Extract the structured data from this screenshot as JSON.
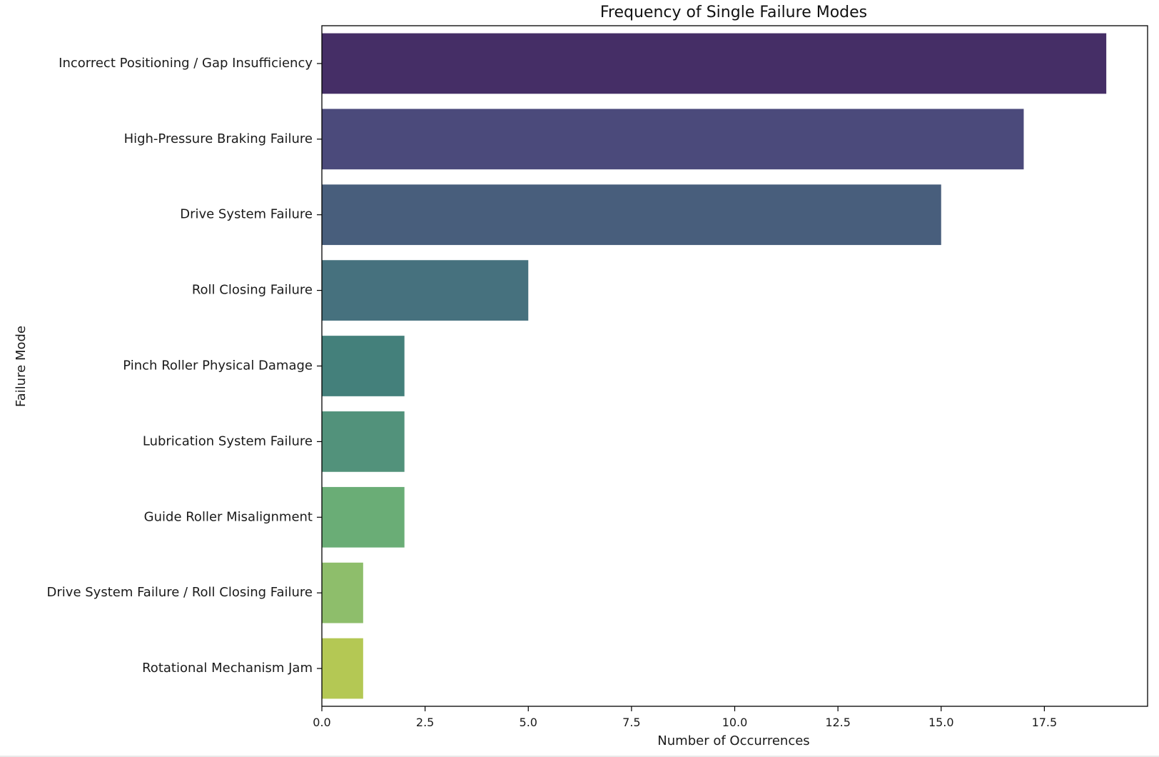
{
  "chart_data": {
    "type": "bar",
    "orientation": "horizontal",
    "title": "Frequency of Single Failure Modes",
    "xlabel": "Number of Occurrences",
    "ylabel": "Failure Mode",
    "categories": [
      "Incorrect Positioning / Gap Insufficiency",
      "High-Pressure Braking Failure",
      "Drive System Failure",
      "Roll Closing Failure",
      "Pinch Roller Physical Damage",
      "Lubrication System Failure",
      "Guide Roller Misalignment",
      "Drive System Failure / Roll Closing Failure",
      "Rotational Mechanism Jam"
    ],
    "values": [
      19,
      17,
      15,
      5,
      2,
      2,
      2,
      1,
      1
    ],
    "colors": [
      "#452e66",
      "#4b4a7b",
      "#485e7c",
      "#46717e",
      "#44807b",
      "#52927b",
      "#6aad76",
      "#8ebe6b",
      "#b4c854"
    ],
    "xlim": [
      0,
      20
    ],
    "xticks": [
      "0.0",
      "2.5",
      "5.0",
      "7.5",
      "10.0",
      "12.5",
      "15.0",
      "17.5"
    ],
    "xtick_values": [
      0,
      2.5,
      5,
      7.5,
      10,
      12.5,
      15,
      17.5
    ],
    "grid": false,
    "legend": "none"
  }
}
